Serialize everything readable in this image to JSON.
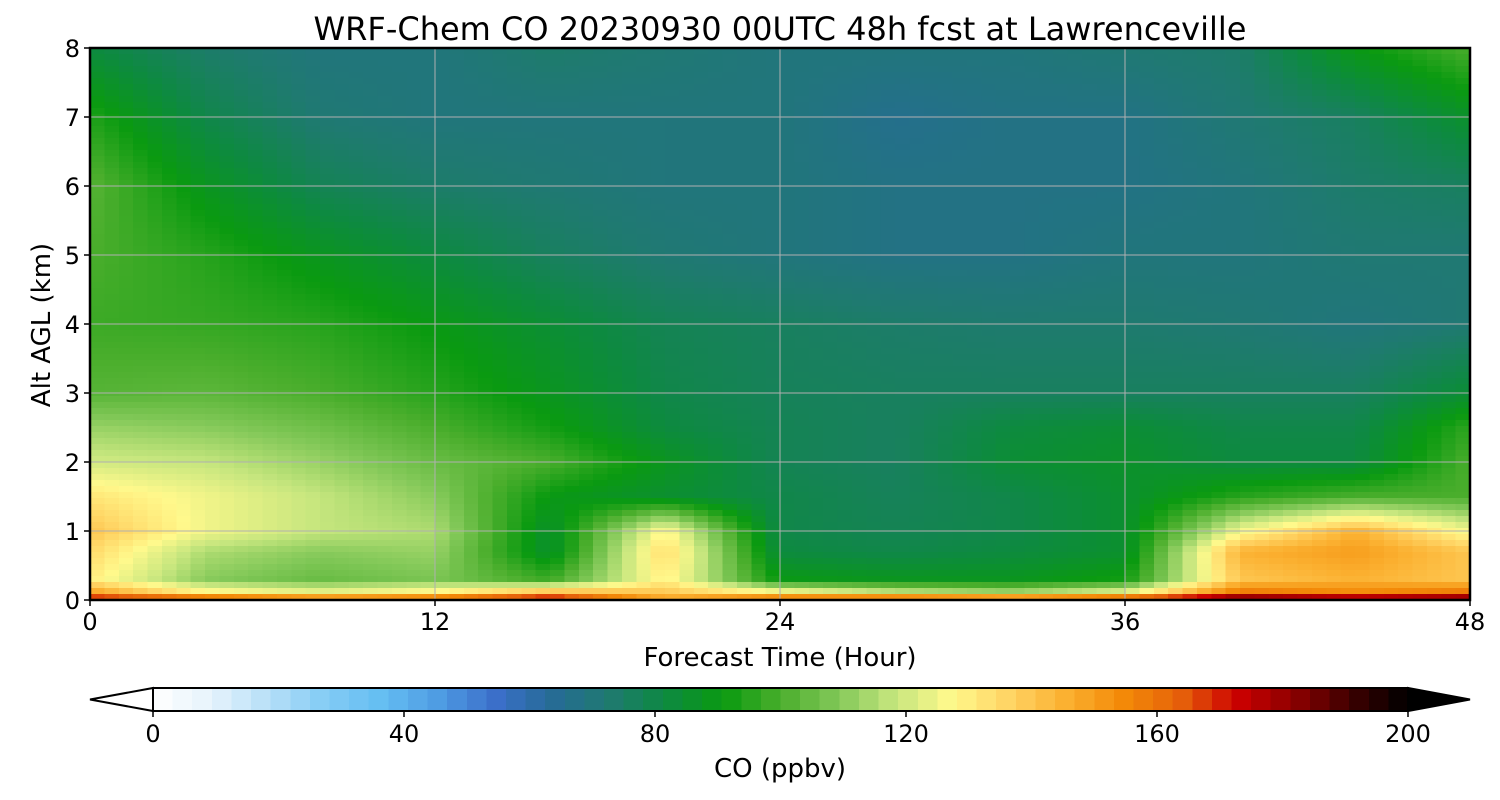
{
  "chart_data": {
    "type": "heatmap",
    "title": "WRF-Chem CO  20230930 00UTC 48h fcst at Lawrenceville",
    "xlabel": "Forecast Time (Hour)",
    "ylabel": "Alt AGL (km)",
    "x_ticks": [
      0,
      12,
      24,
      36,
      48
    ],
    "y_ticks": [
      0,
      1,
      2,
      3,
      4,
      5,
      6,
      7,
      8
    ],
    "xlim": [
      0,
      48
    ],
    "ylim": [
      0,
      8
    ],
    "grid": true,
    "x": [
      0,
      4,
      8,
      12,
      16,
      20,
      24,
      28,
      32,
      36,
      40,
      44,
      48
    ],
    "y": [
      0,
      0.1,
      0.3,
      0.7,
      1,
      1.5,
      2,
      2.5,
      3,
      4,
      5,
      6,
      7,
      8
    ],
    "values": [
      [
        180,
        175,
        168,
        170,
        185,
        150,
        170,
        178,
        175,
        180,
        195,
        190,
        192
      ],
      [
        150,
        130,
        125,
        130,
        145,
        140,
        130,
        120,
        115,
        125,
        160,
        155,
        160
      ],
      [
        130,
        110,
        105,
        108,
        98,
        130,
        90,
        88,
        88,
        92,
        140,
        145,
        140
      ],
      [
        135,
        115,
        110,
        112,
        85,
        135,
        82,
        80,
        82,
        85,
        145,
        150,
        140
      ],
      [
        140,
        125,
        118,
        115,
        85,
        128,
        80,
        78,
        80,
        85,
        125,
        145,
        125
      ],
      [
        132,
        125,
        118,
        110,
        90,
        85,
        80,
        77,
        80,
        85,
        95,
        100,
        100
      ],
      [
        120,
        118,
        112,
        105,
        100,
        88,
        78,
        76,
        84,
        86,
        82,
        82,
        100
      ],
      [
        112,
        110,
        106,
        100,
        92,
        82,
        78,
        76,
        82,
        84,
        80,
        80,
        96
      ],
      [
        102,
        103,
        100,
        95,
        88,
        80,
        77,
        76,
        76,
        76,
        76,
        76,
        84
      ],
      [
        98,
        97,
        95,
        90,
        84,
        78,
        76,
        74,
        73,
        73,
        72,
        70,
        72
      ],
      [
        100,
        95,
        88,
        82,
        76,
        72,
        70,
        68,
        68,
        70,
        70,
        72,
        72
      ],
      [
        102,
        88,
        78,
        74,
        72,
        70,
        70,
        68,
        68,
        68,
        70,
        74,
        76
      ],
      [
        94,
        80,
        72,
        70,
        70,
        70,
        70,
        66,
        68,
        68,
        72,
        76,
        86
      ],
      [
        82,
        74,
        70,
        70,
        74,
        72,
        70,
        70,
        70,
        72,
        74,
        90,
        100
      ]
    ],
    "colorbar": {
      "label": "CO  (ppbv)",
      "ticks": [
        0,
        40,
        80,
        120,
        160,
        200
      ],
      "range": [
        0,
        200
      ],
      "extend": "both",
      "colors": [
        "#ffffff",
        "#e6f3fc",
        "#b8e0f8",
        "#84ccf5",
        "#64bef2",
        "#4f9ce3",
        "#3b6fca",
        "#266b96",
        "#1f7a70",
        "#0d8a40",
        "#0a9a10",
        "#4aae2c",
        "#82c858",
        "#c6e67e",
        "#fff98c",
        "#ffd464",
        "#fbb030",
        "#f38a08",
        "#e6620a",
        "#cc0000",
        "#8c0000",
        "#3d0000",
        "#000000"
      ]
    }
  }
}
